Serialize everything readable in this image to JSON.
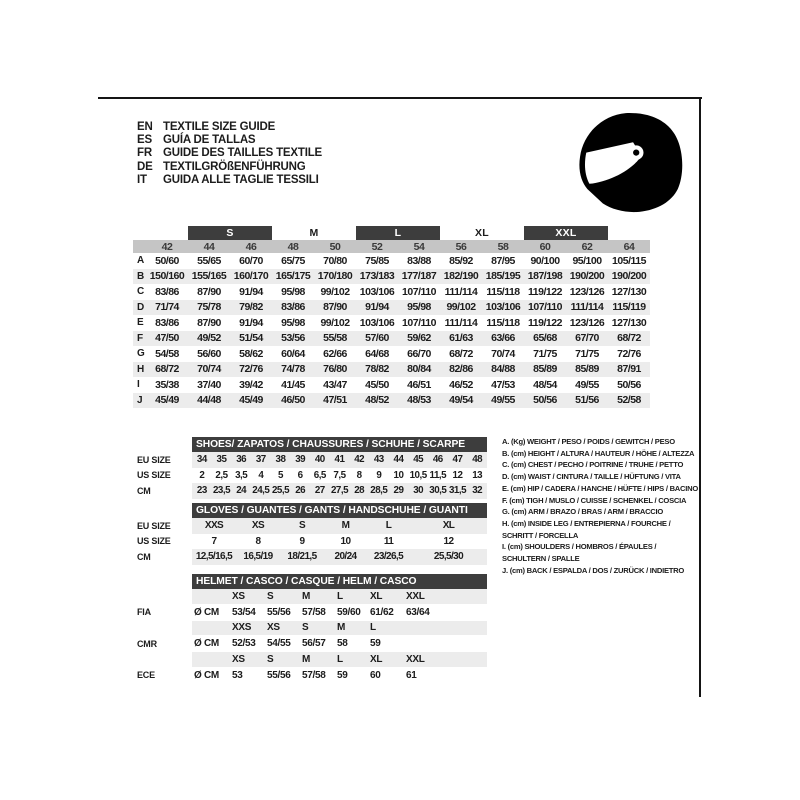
{
  "colors": {
    "dark_bar": "#3d3d3d",
    "size_header_row": "#c5c5c5",
    "stripe_row": "#ececec",
    "text": "#1c1c1c",
    "border": "#151515"
  },
  "icons": [
    "helmet-icon"
  ],
  "languages": [
    {
      "code": "EN",
      "title": "TEXTILE SIZE GUIDE"
    },
    {
      "code": "ES",
      "title": "GUÍA DE TALLAS"
    },
    {
      "code": "FR",
      "title": "GUIDE DES TAILLES TEXTILE"
    },
    {
      "code": "DE",
      "title": "TEXTILGRÖßENFÜHRUNG"
    },
    {
      "code": "IT",
      "title": "GUIDA ALLE TAGLIE TESSILI"
    }
  ],
  "main_table": {
    "groups": [
      {
        "label": "S",
        "dark": true
      },
      {
        "label": "M",
        "dark": false
      },
      {
        "label": "L",
        "dark": true
      },
      {
        "label": "XL",
        "dark": false
      },
      {
        "label": "XXL",
        "dark": true
      }
    ],
    "sizes": [
      "42",
      "44",
      "46",
      "48",
      "50",
      "52",
      "54",
      "56",
      "58",
      "60",
      "62",
      "64"
    ],
    "rows": [
      {
        "label": "A",
        "values": [
          "50/60",
          "55/65",
          "60/70",
          "65/75",
          "70/80",
          "75/85",
          "83/88",
          "85/92",
          "87/95",
          "90/100",
          "95/100",
          "105/115"
        ]
      },
      {
        "label": "B",
        "values": [
          "150/160",
          "155/165",
          "160/170",
          "165/175",
          "170/180",
          "173/183",
          "177/187",
          "182/190",
          "185/195",
          "187/198",
          "190/200",
          "190/200"
        ]
      },
      {
        "label": "C",
        "values": [
          "83/86",
          "87/90",
          "91/94",
          "95/98",
          "99/102",
          "103/106",
          "107/110",
          "111/114",
          "115/118",
          "119/122",
          "123/126",
          "127/130"
        ]
      },
      {
        "label": "D",
        "values": [
          "71/74",
          "75/78",
          "79/82",
          "83/86",
          "87/90",
          "91/94",
          "95/98",
          "99/102",
          "103/106",
          "107/110",
          "111/114",
          "115/119"
        ]
      },
      {
        "label": "E",
        "values": [
          "83/86",
          "87/90",
          "91/94",
          "95/98",
          "99/102",
          "103/106",
          "107/110",
          "111/114",
          "115/118",
          "119/122",
          "123/126",
          "127/130"
        ]
      },
      {
        "label": "F",
        "values": [
          "47/50",
          "49/52",
          "51/54",
          "53/56",
          "55/58",
          "57/60",
          "59/62",
          "61/63",
          "63/66",
          "65/68",
          "67/70",
          "68/72"
        ]
      },
      {
        "label": "G",
        "values": [
          "54/58",
          "56/60",
          "58/62",
          "60/64",
          "62/66",
          "64/68",
          "66/70",
          "68/72",
          "70/74",
          "71/75",
          "71/75",
          "72/76"
        ]
      },
      {
        "label": "H",
        "values": [
          "68/72",
          "70/74",
          "72/76",
          "74/78",
          "76/80",
          "78/82",
          "80/84",
          "82/86",
          "84/88",
          "85/89",
          "85/89",
          "87/91"
        ]
      },
      {
        "label": "I",
        "values": [
          "35/38",
          "37/40",
          "39/42",
          "41/45",
          "43/47",
          "45/50",
          "46/51",
          "46/52",
          "47/53",
          "48/54",
          "49/55",
          "50/56"
        ]
      },
      {
        "label": "J",
        "values": [
          "45/49",
          "44/48",
          "45/49",
          "46/50",
          "47/51",
          "48/52",
          "48/53",
          "49/54",
          "49/55",
          "50/56",
          "51/56",
          "52/58"
        ]
      }
    ]
  },
  "shoes": {
    "title": "SHOES/ ZAPATOS / CHAUSSURES / SCHUHE / SCARPE",
    "rows": [
      {
        "label": "EU SIZE",
        "gray": true,
        "values": [
          "34",
          "35",
          "36",
          "37",
          "38",
          "39",
          "40",
          "41",
          "42",
          "43",
          "44",
          "45",
          "46",
          "47",
          "48"
        ]
      },
      {
        "label": "US SIZE",
        "gray": false,
        "values": [
          "2",
          "2,5",
          "3,5",
          "4",
          "5",
          "6",
          "6,5",
          "7,5",
          "8",
          "9",
          "10",
          "10,5",
          "11,5",
          "12",
          "13"
        ]
      },
      {
        "label": "CM",
        "gray": true,
        "values": [
          "23",
          "23,5",
          "24",
          "24,5",
          "25,5",
          "26",
          "27",
          "27,5",
          "28",
          "28,5",
          "29",
          "30",
          "30,5",
          "31,5",
          "32"
        ]
      }
    ]
  },
  "gloves": {
    "title": "GLOVES / GUANTES / GANTS / HANDSCHUHE / GUANTI",
    "rows": [
      {
        "label": "EU SIZE",
        "gray": true,
        "values": [
          "XXS",
          "XS",
          "S",
          "M",
          "L",
          "XL"
        ]
      },
      {
        "label": "US SIZE",
        "gray": false,
        "values": [
          "7",
          "8",
          "9",
          "10",
          "11",
          "12"
        ]
      },
      {
        "label": "CM",
        "gray": true,
        "values": [
          "12,5/16,5",
          "16,5/19",
          "18/21,5",
          "20/24",
          "23/26,5",
          "25,5/30"
        ]
      }
    ]
  },
  "helmet": {
    "title": "HELMET / CASCO / CASQUE / HELM / CASCO",
    "sections": [
      {
        "label": "FIA",
        "prefix": "Ø CM",
        "sizes": [
          "XS",
          "S",
          "M",
          "L",
          "XL",
          "XXL"
        ],
        "values": [
          "53/54",
          "55/56",
          "57/58",
          "59/60",
          "61/62",
          "63/64"
        ]
      },
      {
        "label": "CMR",
        "prefix": "Ø CM",
        "sizes": [
          "XXS",
          "XS",
          "S",
          "M",
          "L",
          ""
        ],
        "values": [
          "52/53",
          "54/55",
          "56/57",
          "58",
          "59",
          ""
        ]
      },
      {
        "label": "ECE",
        "prefix": "Ø CM",
        "sizes": [
          "XS",
          "S",
          "M",
          "L",
          "XL",
          "XXL"
        ],
        "values": [
          "53",
          "55/56",
          "57/58",
          "59",
          "60",
          "61"
        ]
      }
    ]
  },
  "legend": [
    {
      "lines": [
        "A. (Kg) WEIGHT / PESO / POIDS / GEWITCH / PESO"
      ]
    },
    {
      "lines": [
        "B. (cm) HEIGHT / ALTURA / HAUTEUR / HÖHE / ALTEZZA"
      ]
    },
    {
      "lines": [
        "C. (cm) CHEST / PECHO / POITRINE / TRUHE / PETTO"
      ]
    },
    {
      "lines": [
        "D. (cm) WAIST / CINTURA / TAILLE / HÜFTUNG / VITA"
      ]
    },
    {
      "lines": [
        "E. (cm) HIP / CADERA / HANCHE / HÜFTE / HIPS /  BACINO"
      ]
    },
    {
      "lines": [
        "F. (cm) TIGH / MUSLO / CUISSE / SCHENKEL / COSCIA"
      ]
    },
    {
      "lines": [
        "G. (cm) ARM  / BRAZO / BRAS / ARM / BRACCIO"
      ]
    },
    {
      "lines": [
        "H. (cm) INSIDE LEG / ENTREPIERNA / FOURCHE /",
        "SCHRITT / FORCELLA"
      ]
    },
    {
      "lines": [
        "I.  (cm) SHOULDERS / HOMBROS / ÉPAULES /",
        "SCHULTERN / SPALLE"
      ]
    },
    {
      "lines": [
        "J. (cm) BACK / ESPALDA / DOS / ZURÜCK / INDIETRO"
      ]
    }
  ]
}
